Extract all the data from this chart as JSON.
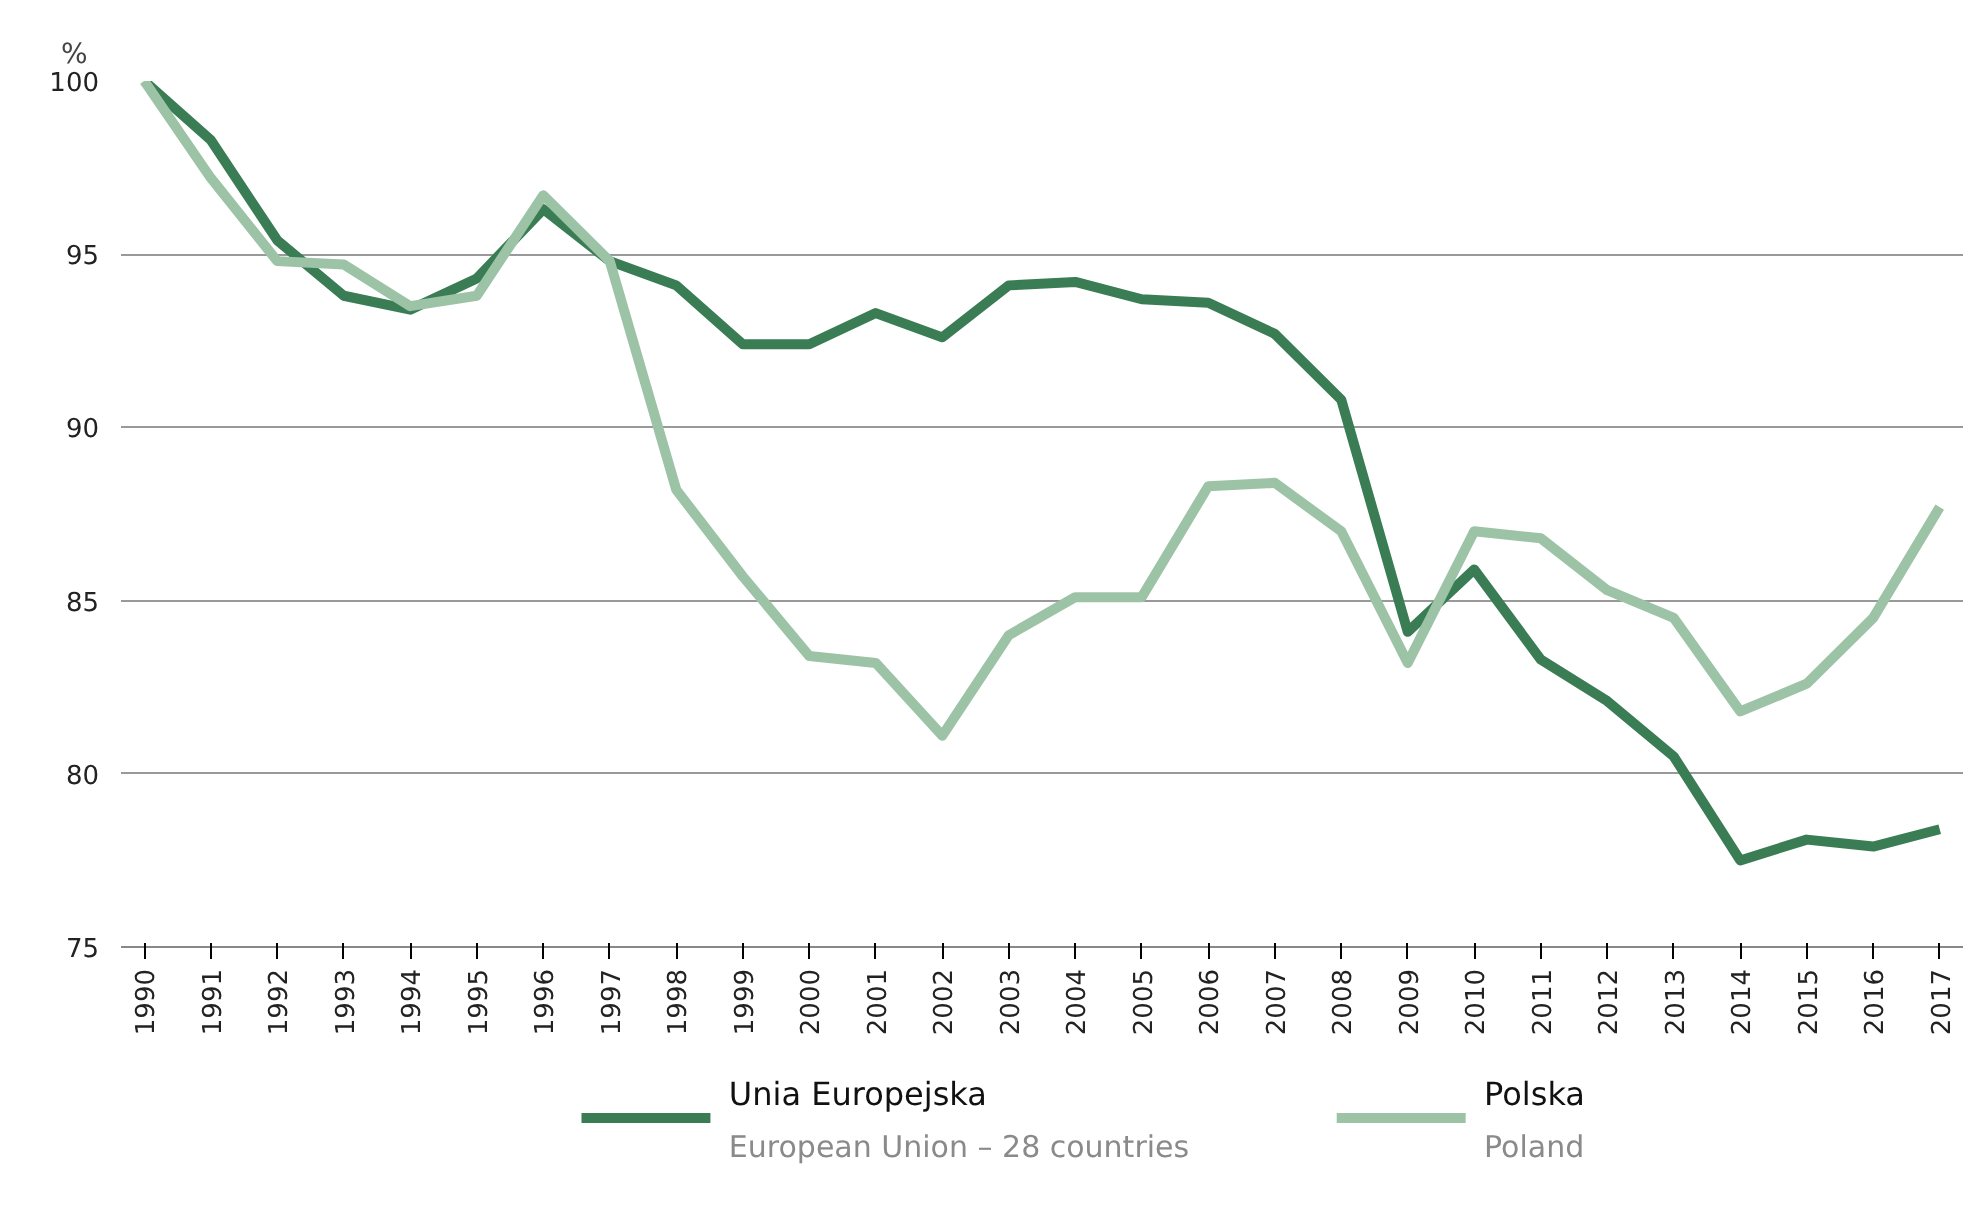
{
  "chart_data": {
    "type": "line",
    "ylabel": "%",
    "categories": [
      "1990",
      "1991",
      "1992",
      "1993",
      "1994",
      "1995",
      "1996",
      "1997",
      "1998",
      "1999",
      "2000",
      "2001",
      "2002",
      "2003",
      "2004",
      "2005",
      "2006",
      "2007",
      "2008",
      "2009",
      "2010",
      "2011",
      "2012",
      "2013",
      "2014",
      "2015",
      "2016",
      "2017"
    ],
    "series": [
      {
        "name": "Unia Europejska\nEuropean Union – 28 countries",
        "color": "#3a7d55",
        "values": [
          100,
          98.3,
          95.4,
          93.8,
          93.4,
          94.3,
          96.3,
          94.8,
          94.1,
          92.4,
          92.4,
          93.3,
          92.6,
          94.1,
          94.2,
          93.7,
          93.6,
          92.7,
          90.8,
          84.1,
          85.9,
          83.3,
          82.1,
          80.5,
          77.5,
          78.1,
          77.9,
          78.4
        ]
      },
      {
        "name": "Polska\nPoland",
        "color": "#9cc3a6",
        "values": [
          100,
          97.2,
          94.8,
          94.7,
          93.5,
          93.8,
          96.7,
          94.8,
          88.2,
          85.7,
          83.4,
          83.2,
          81.1,
          84.0,
          85.1,
          85.1,
          88.3,
          88.4,
          87.0,
          83.2,
          87.0,
          86.8,
          85.3,
          84.5,
          81.8,
          82.6,
          84.5,
          87.7
        ]
      }
    ],
    "ylim": [
      75,
      100
    ],
    "yticks": [
      75,
      80,
      85,
      90,
      95,
      100
    ],
    "grid": "y",
    "legend": "bottom",
    "line_style": "solid",
    "marker": "none"
  }
}
